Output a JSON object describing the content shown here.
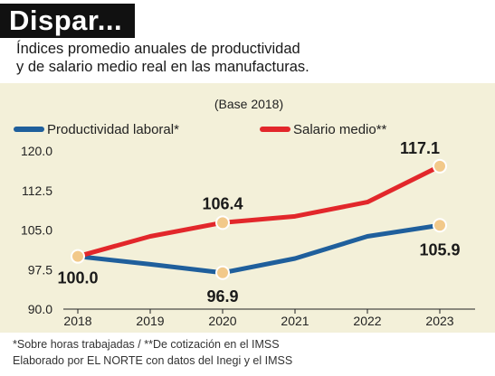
{
  "header": {
    "title": "Dispar...",
    "subtitle_line1": "Índices promedio anuales de productividad",
    "subtitle_line2": "y de salario medio real en las manufacturas."
  },
  "footer": {
    "note1": "*Sobre horas trabajadas / **De cotización en el IMSS",
    "note2": "Elaborado por EL NORTE con datos del Inegi y el IMSS"
  },
  "colors": {
    "background": "#f3f0d9",
    "productividad": "#1f5f9c",
    "salario": "#e2272b",
    "marker": "#f2c98a"
  },
  "chart_data": {
    "type": "line",
    "subtitle": "(Base 2018)",
    "x": [
      "2018",
      "2019",
      "2020",
      "2021",
      "2022",
      "2023"
    ],
    "ylim": [
      90.0,
      120.0
    ],
    "yticks": [
      "120.0",
      "112.5",
      "105.0",
      "97.5",
      "90.0"
    ],
    "grid": false,
    "legend_position": "top-left",
    "series": [
      {
        "name": "Productividad laboral*",
        "color": "#1f5f9c",
        "values": [
          100.0,
          98.5,
          96.9,
          99.6,
          103.8,
          105.9
        ],
        "labels": [
          "100.0",
          "",
          "96.9",
          "",
          "",
          "105.9"
        ]
      },
      {
        "name": "Salario medio**",
        "color": "#e2272b",
        "values": [
          100.0,
          103.8,
          106.4,
          107.6,
          110.3,
          117.1
        ],
        "labels": [
          "",
          "",
          "106.4",
          "",
          "",
          "117.1"
        ]
      }
    ]
  }
}
